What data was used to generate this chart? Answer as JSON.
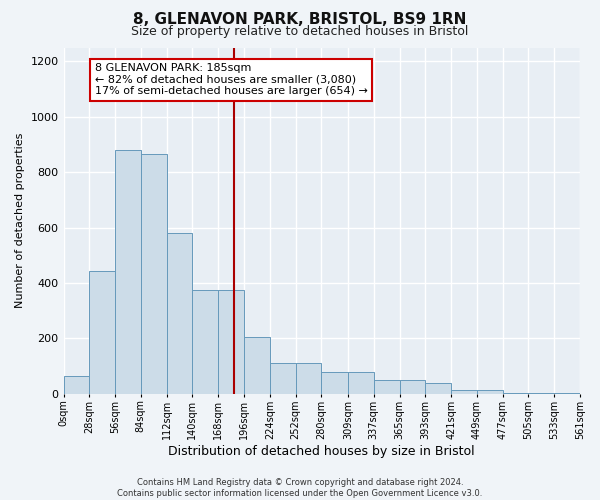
{
  "title": "8, GLENAVON PARK, BRISTOL, BS9 1RN",
  "subtitle": "Size of property relative to detached houses in Bristol",
  "xlabel": "Distribution of detached houses by size in Bristol",
  "ylabel": "Number of detached properties",
  "bin_edges": [
    0,
    28,
    56,
    84,
    112,
    140,
    168,
    196,
    224,
    252,
    280,
    309,
    337,
    365,
    393,
    421,
    449,
    477,
    505,
    533,
    561
  ],
  "bar_heights": [
    65,
    445,
    880,
    865,
    580,
    375,
    375,
    205,
    110,
    110,
    80,
    80,
    50,
    50,
    40,
    15,
    15,
    5,
    5,
    5
  ],
  "bar_color": "#ccdce8",
  "bar_edge_color": "#6699bb",
  "vline_x": 185,
  "vline_color": "#aa0000",
  "annotation_text": "8 GLENAVON PARK: 185sqm\n← 82% of detached houses are smaller (3,080)\n17% of semi-detached houses are larger (654) →",
  "annotation_box_facecolor": "#ffffff",
  "annotation_box_edgecolor": "#cc0000",
  "ylim": [
    0,
    1250
  ],
  "yticks": [
    0,
    200,
    400,
    600,
    800,
    1000,
    1200
  ],
  "tick_labels": [
    "0sqm",
    "28sqm",
    "56sqm",
    "84sqm",
    "112sqm",
    "140sqm",
    "168sqm",
    "196sqm",
    "224sqm",
    "252sqm",
    "280sqm",
    "309sqm",
    "337sqm",
    "365sqm",
    "393sqm",
    "421sqm",
    "449sqm",
    "477sqm",
    "505sqm",
    "533sqm",
    "561sqm"
  ],
  "footer_line1": "Contains HM Land Registry data © Crown copyright and database right 2024.",
  "footer_line2": "Contains public sector information licensed under the Open Government Licence v3.0.",
  "plot_bg_color": "#e8eef4",
  "fig_bg_color": "#f0f4f8",
  "grid_color": "#ffffff",
  "title_fontsize": 11,
  "subtitle_fontsize": 9,
  "xlabel_fontsize": 9,
  "ylabel_fontsize": 8,
  "tick_fontsize": 7,
  "annot_fontsize": 8,
  "footer_fontsize": 6
}
